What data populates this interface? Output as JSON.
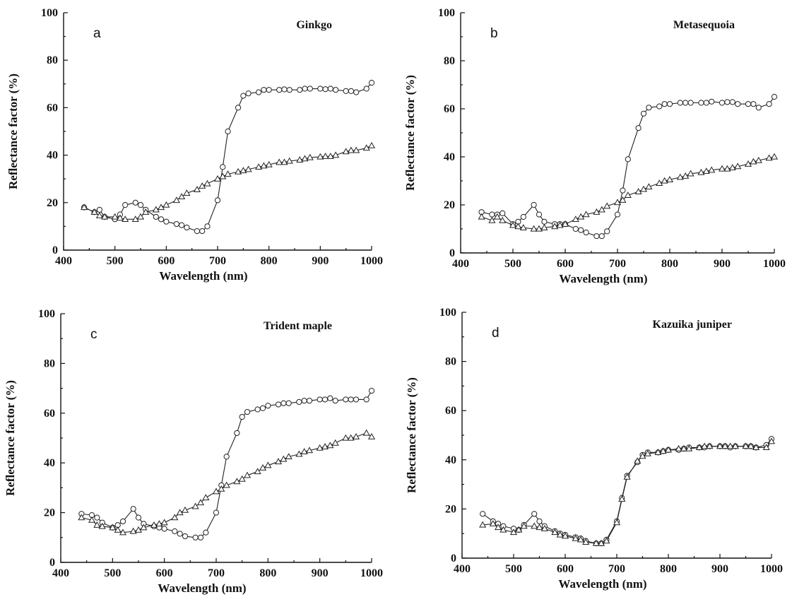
{
  "chart_data": [
    {
      "type": "line",
      "panel_label": "a",
      "title": "Ginkgo",
      "xlabel": "Wavelength (nm)",
      "ylabel": "Reflectance factor (%)",
      "xlim": [
        400,
        1000
      ],
      "ylim": [
        0,
        100
      ],
      "xticks": [
        400,
        500,
        600,
        700,
        800,
        900,
        1000
      ],
      "yticks": [
        0,
        20,
        40,
        60,
        80,
        100
      ],
      "grid": false,
      "series": [
        {
          "marker": "circle",
          "x": [
            440,
            460,
            470,
            480,
            500,
            510,
            520,
            540,
            550,
            560,
            580,
            590,
            600,
            620,
            630,
            640,
            660,
            670,
            680,
            700,
            710,
            720,
            740,
            750,
            760,
            780,
            790,
            800,
            820,
            830,
            840,
            860,
            870,
            880,
            900,
            910,
            920,
            930,
            950,
            960,
            970,
            990,
            1000
          ],
          "y": [
            18,
            16,
            17,
            14,
            13,
            15,
            19,
            20,
            19,
            17,
            14,
            13,
            12,
            11,
            10.5,
            9.5,
            8,
            8,
            10,
            21,
            35,
            50,
            60,
            65,
            66,
            66.5,
            67.5,
            67.5,
            67.5,
            67.7,
            67.5,
            67.5,
            68,
            68,
            68,
            67.8,
            68,
            67.5,
            67,
            67,
            66.5,
            68,
            70.5
          ]
        },
        {
          "marker": "triangle",
          "x": [
            440,
            460,
            470,
            480,
            500,
            510,
            520,
            540,
            550,
            560,
            580,
            590,
            600,
            620,
            630,
            640,
            660,
            670,
            680,
            700,
            710,
            720,
            740,
            750,
            760,
            780,
            790,
            800,
            820,
            830,
            840,
            860,
            870,
            880,
            900,
            910,
            920,
            930,
            950,
            960,
            970,
            990,
            1000
          ],
          "y": [
            18,
            16,
            14.5,
            14,
            14,
            13.5,
            13,
            13,
            14,
            16,
            17,
            18,
            19,
            21,
            22.5,
            24,
            25.5,
            27,
            28,
            30,
            31,
            32,
            33,
            33.5,
            34,
            35,
            35.5,
            36,
            37,
            37,
            37.5,
            38,
            38.5,
            39,
            39.3,
            39.5,
            39.5,
            40,
            41.5,
            42,
            42,
            43,
            44
          ]
        }
      ]
    },
    {
      "type": "line",
      "panel_label": "b",
      "title": "Metasequoia",
      "xlabel": "Wavelength (nm)",
      "ylabel": "Reflectance factor (%)",
      "xlim": [
        400,
        1000
      ],
      "ylim": [
        0,
        100
      ],
      "xticks": [
        400,
        500,
        600,
        700,
        800,
        900,
        1000
      ],
      "yticks": [
        0,
        20,
        40,
        60,
        80,
        100
      ],
      "grid": false,
      "series": [
        {
          "marker": "circle",
          "x": [
            440,
            460,
            470,
            480,
            500,
            510,
            520,
            540,
            550,
            560,
            580,
            590,
            600,
            620,
            630,
            640,
            660,
            670,
            680,
            700,
            710,
            720,
            740,
            750,
            760,
            780,
            790,
            800,
            820,
            830,
            840,
            860,
            870,
            880,
            900,
            910,
            920,
            930,
            950,
            960,
            970,
            990,
            1000
          ],
          "y": [
            17,
            16,
            16,
            16.5,
            12,
            13,
            15,
            20,
            16,
            13,
            12,
            12,
            12,
            10,
            9.5,
            8.5,
            7,
            7,
            9,
            16,
            26,
            39,
            52,
            58,
            60.5,
            61,
            62,
            62,
            62.5,
            62.5,
            62.5,
            62.5,
            62.5,
            63,
            62.5,
            62.8,
            62.8,
            62,
            62,
            62,
            60.5,
            62,
            65
          ]
        },
        {
          "marker": "triangle",
          "x": [
            440,
            460,
            470,
            480,
            500,
            510,
            520,
            540,
            550,
            560,
            580,
            590,
            600,
            620,
            630,
            640,
            660,
            670,
            680,
            700,
            710,
            720,
            740,
            750,
            760,
            780,
            790,
            800,
            820,
            830,
            840,
            860,
            870,
            880,
            900,
            910,
            920,
            930,
            950,
            960,
            970,
            990,
            1000
          ],
          "y": [
            15,
            13.5,
            15,
            13.5,
            11.5,
            11,
            10.5,
            10,
            10,
            10.5,
            11,
            11.5,
            12,
            14,
            15,
            16,
            17,
            18,
            19.5,
            21,
            22,
            24,
            25.5,
            26.5,
            27.5,
            29,
            30,
            30.5,
            31.5,
            32,
            33,
            33.5,
            34,
            34.5,
            35,
            35,
            35.5,
            36,
            37,
            38,
            38.5,
            39.5,
            40
          ]
        }
      ]
    },
    {
      "type": "line",
      "panel_label": "c",
      "title": "Trident maple",
      "xlabel": "Wavelength (nm)",
      "ylabel": "Reflectance factor (%)",
      "xlim": [
        400,
        1000
      ],
      "ylim": [
        0,
        100
      ],
      "xticks": [
        400,
        500,
        600,
        700,
        800,
        900,
        1000
      ],
      "yticks": [
        0,
        20,
        40,
        60,
        80,
        100
      ],
      "grid": false,
      "series": [
        {
          "marker": "circle",
          "x": [
            440,
            460,
            470,
            480,
            500,
            510,
            520,
            540,
            550,
            560,
            580,
            590,
            600,
            620,
            630,
            640,
            660,
            670,
            680,
            700,
            710,
            720,
            740,
            750,
            760,
            780,
            790,
            800,
            820,
            830,
            840,
            860,
            870,
            880,
            900,
            910,
            920,
            930,
            950,
            960,
            970,
            990,
            1000
          ],
          "y": [
            19.5,
            19,
            18,
            16,
            14,
            15,
            16.5,
            21.5,
            18,
            15.5,
            14.5,
            14,
            13.5,
            12.5,
            11.5,
            10.5,
            10,
            10,
            12,
            20,
            31,
            42.5,
            52,
            58.5,
            60.5,
            61.5,
            62,
            63,
            63.5,
            64,
            64,
            64.5,
            65,
            65,
            65.5,
            65.5,
            66,
            65,
            65.5,
            65.5,
            65.5,
            65.5,
            69
          ]
        },
        {
          "marker": "triangle",
          "x": [
            440,
            460,
            470,
            480,
            500,
            510,
            520,
            540,
            550,
            560,
            580,
            590,
            600,
            620,
            630,
            640,
            660,
            670,
            680,
            700,
            710,
            720,
            740,
            750,
            760,
            780,
            790,
            800,
            820,
            830,
            840,
            860,
            870,
            880,
            900,
            910,
            920,
            930,
            950,
            960,
            970,
            990,
            1000
          ],
          "y": [
            18,
            17,
            15,
            14.5,
            14,
            13,
            12,
            12.5,
            13,
            14,
            15,
            15.5,
            16,
            18,
            20,
            21,
            22.5,
            24,
            26,
            28.5,
            29.5,
            31,
            32.5,
            33.5,
            35,
            36.5,
            38,
            39,
            40.5,
            41.5,
            42.5,
            43.5,
            44.5,
            45,
            46,
            46.5,
            47,
            48,
            50,
            50,
            50.5,
            52,
            50.5
          ]
        }
      ]
    },
    {
      "type": "line",
      "panel_label": "d",
      "title": "Kazuika juniper",
      "xlabel": "Wavelength (nm)",
      "ylabel": "Reflectance factor (%)",
      "xlim": [
        400,
        1000
      ],
      "ylim": [
        0,
        100
      ],
      "xticks": [
        400,
        500,
        600,
        700,
        800,
        900,
        1000
      ],
      "yticks": [
        0,
        20,
        40,
        60,
        80,
        100
      ],
      "grid": false,
      "series": [
        {
          "marker": "circle",
          "x": [
            440,
            460,
            470,
            480,
            500,
            510,
            520,
            540,
            550,
            560,
            580,
            590,
            600,
            620,
            630,
            640,
            660,
            670,
            680,
            700,
            710,
            720,
            740,
            750,
            760,
            780,
            790,
            800,
            820,
            830,
            840,
            860,
            870,
            880,
            900,
            910,
            920,
            930,
            950,
            960,
            970,
            990,
            1000
          ],
          "y": [
            18,
            15,
            14,
            13,
            12,
            11.5,
            13.5,
            18,
            15,
            13,
            11,
            10,
            9.5,
            8.5,
            8,
            7,
            6,
            6,
            7.5,
            15,
            24.5,
            33.5,
            39,
            42,
            43,
            43,
            43.5,
            44,
            44,
            44.5,
            45,
            45,
            45,
            45.5,
            45.5,
            45.5,
            45,
            45.5,
            45.5,
            45.5,
            45,
            46,
            48.5
          ]
        },
        {
          "marker": "triangle",
          "x": [
            440,
            460,
            470,
            480,
            500,
            510,
            520,
            540,
            550,
            560,
            580,
            590,
            600,
            620,
            630,
            640,
            660,
            670,
            680,
            700,
            710,
            720,
            740,
            750,
            760,
            780,
            790,
            800,
            820,
            830,
            840,
            860,
            870,
            880,
            900,
            910,
            920,
            930,
            950,
            960,
            970,
            990,
            1000
          ],
          "y": [
            13.5,
            14,
            12.5,
            11.5,
            10.5,
            11.5,
            13,
            13,
            12.5,
            12,
            10.5,
            9.5,
            9,
            8,
            7.5,
            6.5,
            6,
            6,
            7,
            14.5,
            24,
            33,
            39.5,
            41.5,
            42.5,
            43,
            43.5,
            44,
            44.5,
            44.5,
            44.5,
            45,
            45.5,
            45.5,
            45.5,
            45.5,
            45.5,
            45.5,
            45.5,
            45.5,
            45,
            45,
            47.5
          ]
        }
      ]
    }
  ]
}
